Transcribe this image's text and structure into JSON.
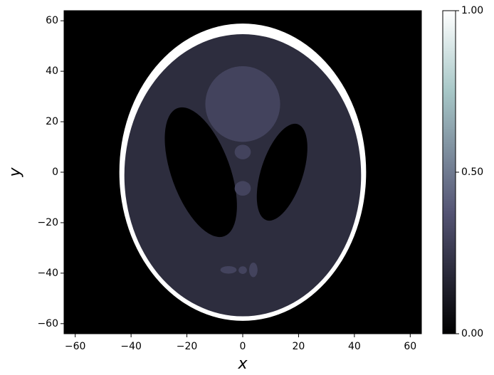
{
  "chart_data": {
    "type": "image",
    "xlabel": "x",
    "ylabel": "y",
    "xlim": [
      -64,
      64
    ],
    "ylim": [
      -64,
      64
    ],
    "xticks": [
      {
        "value": -60,
        "label": "−60"
      },
      {
        "value": -40,
        "label": "−40"
      },
      {
        "value": -20,
        "label": "−20"
      },
      0,
      20,
      40,
      60
    ],
    "yticks": [
      {
        "value": -60,
        "label": "−60"
      },
      {
        "value": -40,
        "label": "−40"
      },
      {
        "value": -20,
        "label": "−20"
      },
      0,
      20,
      40,
      60
    ],
    "colormap": "bone",
    "clim": [
      0,
      1
    ],
    "cticks": [
      {
        "value": 0,
        "label": "0.00"
      },
      {
        "value": 0.5,
        "label": "0.50"
      },
      {
        "value": 1,
        "label": "1.00"
      }
    ],
    "background": 0,
    "ellipses": [
      {
        "value": 1.0,
        "x0": 0,
        "y0": 0,
        "a": 44.2,
        "b": 58.9,
        "angle": 0
      },
      {
        "value": 0.2,
        "x0": 0,
        "y0": -1.2,
        "a": 42.4,
        "b": 55.9,
        "angle": 0
      },
      {
        "value": 0.0,
        "x0": 14.1,
        "y0": 0,
        "a": 7.5,
        "b": 20,
        "angle": -18
      },
      {
        "value": 0.0,
        "x0": -15,
        "y0": 0,
        "a": 10.5,
        "b": 27,
        "angle": 20
      },
      {
        "value": 0.3,
        "x0": 0,
        "y0": 27,
        "a": 13.4,
        "b": 15,
        "angle": 0
      },
      {
        "value": 0.3,
        "x0": 0,
        "y0": 8,
        "a": 2.9,
        "b": 2.9,
        "angle": 0
      },
      {
        "value": 0.3,
        "x0": 0,
        "y0": -6.4,
        "a": 2.9,
        "b": 2.9,
        "angle": 0
      },
      {
        "value": 0.3,
        "x0": -5.1,
        "y0": -38.7,
        "a": 2.9,
        "b": 1.5,
        "angle": 0
      },
      {
        "value": 0.3,
        "x0": 0,
        "y0": -38.8,
        "a": 1.5,
        "b": 1.5,
        "angle": 0
      },
      {
        "value": 0.3,
        "x0": 3.8,
        "y0": -38.7,
        "a": 1.5,
        "b": 2.9,
        "angle": 0
      }
    ]
  }
}
